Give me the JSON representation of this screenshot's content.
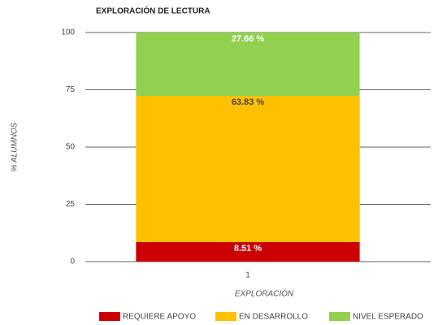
{
  "chart_data": {
    "type": "stacked_bar",
    "title": "EXPLORACIÓN DE LECTURA",
    "x_label": "EXPLORACIÓN",
    "y_label": "% ALUMNOS",
    "categories": [
      "1"
    ],
    "series": [
      {
        "name": "REQUIERE APOYO",
        "color": "#cc0000",
        "label_color": "#ffffff",
        "values": [
          8.51
        ],
        "value_labels": [
          "8.51 %"
        ]
      },
      {
        "name": "EN DESARROLLO",
        "color": "#ffc000",
        "label_color": "#444444",
        "values": [
          63.83
        ],
        "value_labels": [
          "63.83 %"
        ]
      },
      {
        "name": "NIVEL ESPERADO",
        "color": "#92d050",
        "label_color": "#ffffff",
        "values": [
          27.66
        ],
        "value_labels": [
          "27.66 %"
        ]
      }
    ],
    "ylim": [
      0,
      100
    ],
    "yticks": [
      0,
      25,
      50,
      75,
      100
    ],
    "grid": true,
    "legend": "bottom"
  }
}
